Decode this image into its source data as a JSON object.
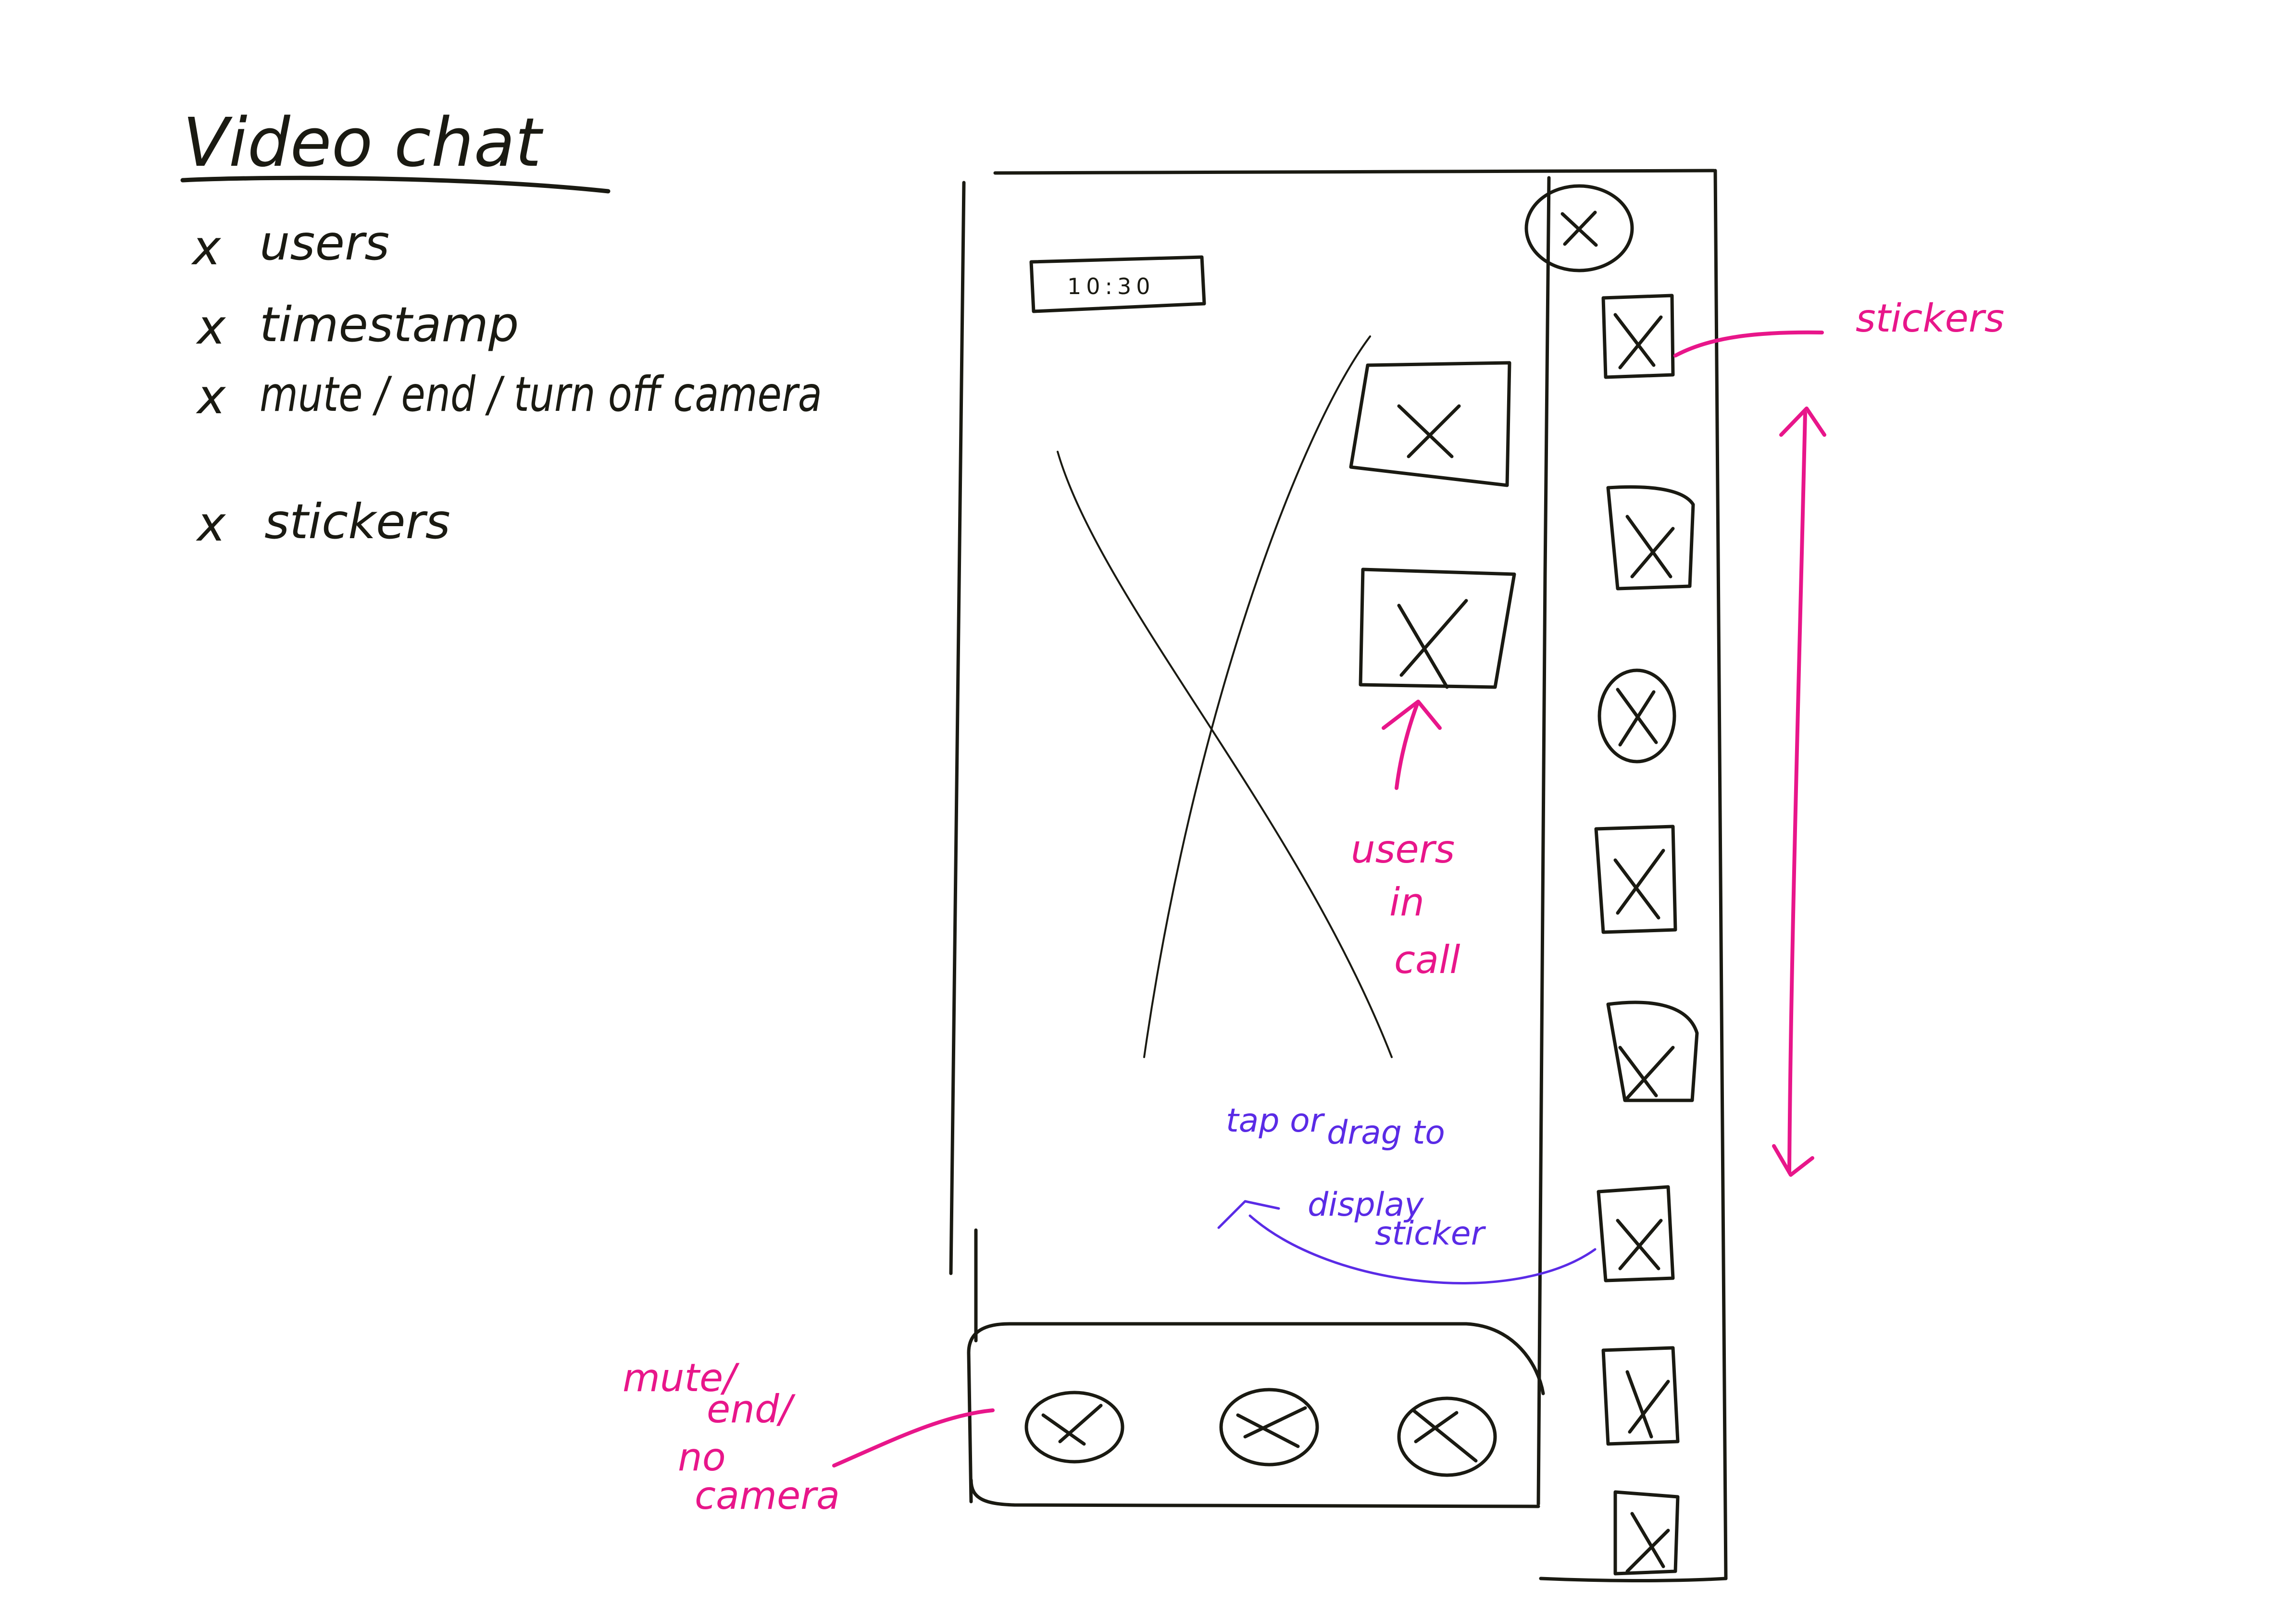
{
  "title": "Video chat",
  "requirements": [
    {
      "bullet": "x",
      "text": "users"
    },
    {
      "bullet": "x",
      "text": "timestamp"
    },
    {
      "bullet": "x",
      "text": "mute / end / turn off camera"
    },
    {
      "bullet": "x",
      "text": "stickers"
    }
  ],
  "phone": {
    "close_button_icon": "close-icon",
    "timestamp": "10:30",
    "main_video_icon": "image-placeholder-icon",
    "participant_thumbnails": [
      {
        "icon": "image-placeholder-icon"
      },
      {
        "icon": "image-placeholder-icon"
      }
    ],
    "sticker_items": [
      {
        "icon": "sticker-placeholder-icon"
      },
      {
        "icon": "sticker-placeholder-icon"
      },
      {
        "icon": "sticker-placeholder-icon"
      },
      {
        "icon": "sticker-placeholder-icon"
      },
      {
        "icon": "sticker-placeholder-icon"
      },
      {
        "icon": "sticker-placeholder-icon"
      },
      {
        "icon": "sticker-placeholder-icon"
      },
      {
        "icon": "sticker-placeholder-icon"
      }
    ],
    "call_controls": [
      {
        "name": "mute",
        "icon": "placeholder-circle-icon"
      },
      {
        "name": "end",
        "icon": "placeholder-circle-icon"
      },
      {
        "name": "no-camera",
        "icon": "placeholder-circle-icon"
      }
    ]
  },
  "annotations": {
    "stickers": "stickers",
    "users_in_call": [
      "users",
      "in",
      "call"
    ],
    "tap_drag": [
      "tap or",
      "drag to",
      "display",
      "sticker"
    ],
    "controls": [
      "mute/",
      "end/",
      "no",
      "camera"
    ]
  },
  "colors": {
    "ink": "#1a1a12",
    "annotation_pink": "#e8168a",
    "annotation_purple": "#5a2be6",
    "background": "#ffffff"
  }
}
